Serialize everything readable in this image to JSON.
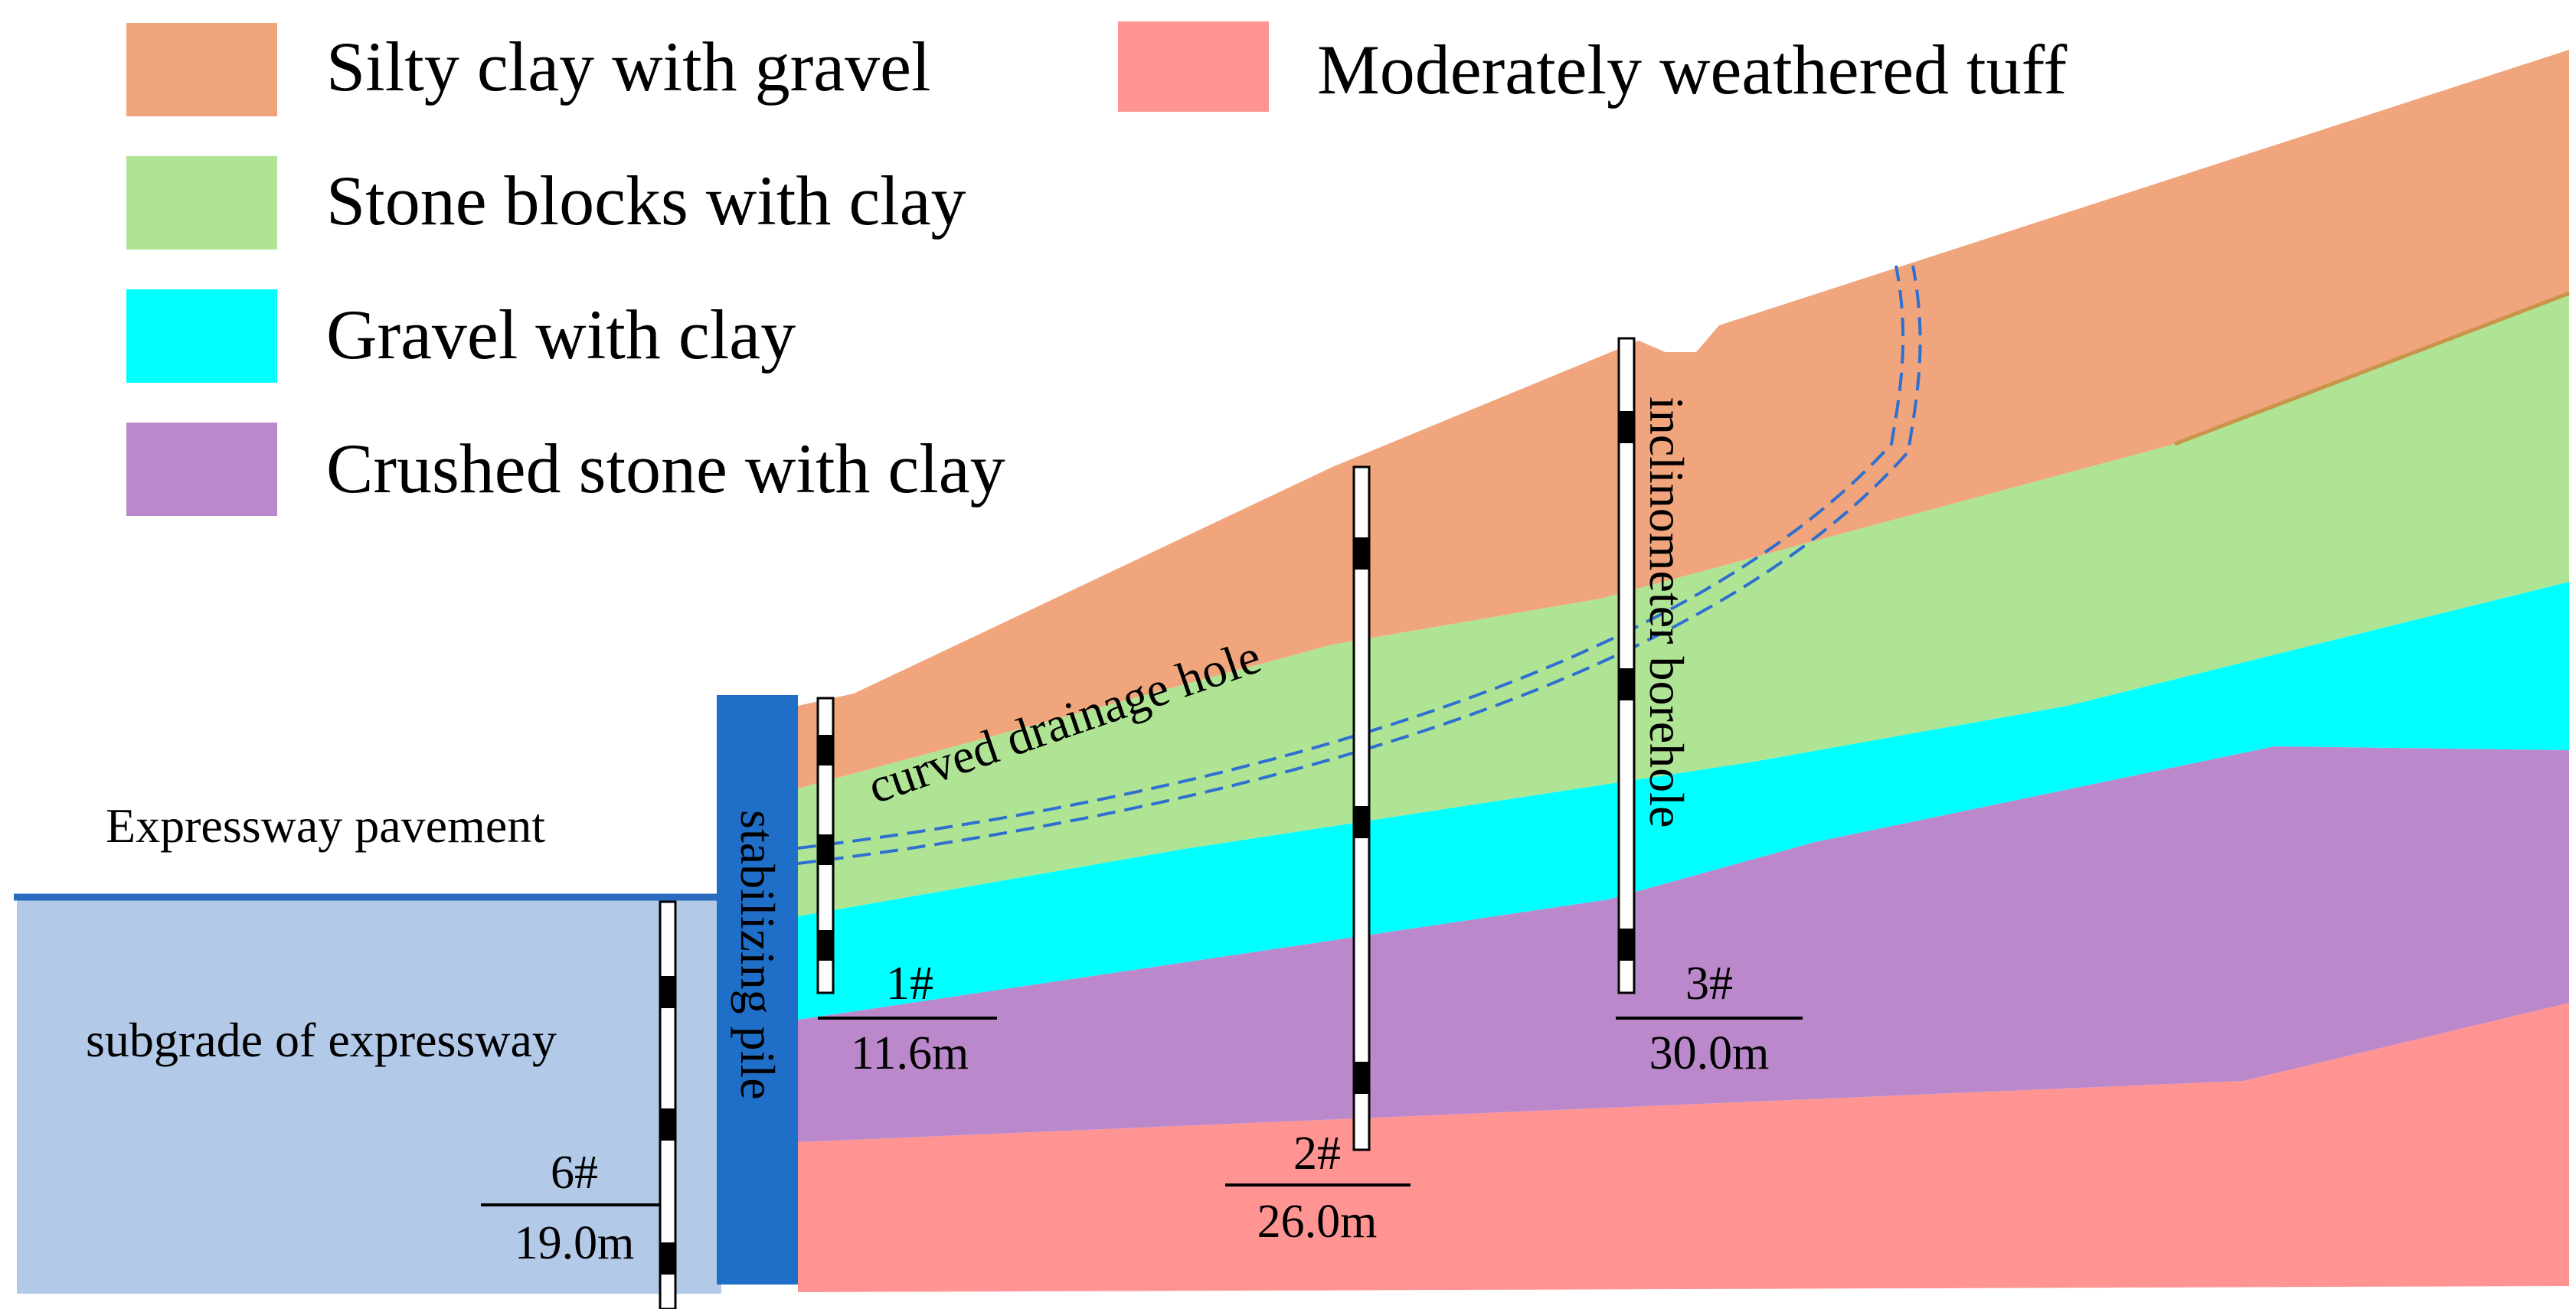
{
  "legend": {
    "items": [
      {
        "label": "Silty clay with gravel",
        "color": "#f0a57c"
      },
      {
        "label": "Stone blocks with clay",
        "color": "#b0e495"
      },
      {
        "label": "Gravel with clay",
        "color": "#00ffff"
      },
      {
        "label": "Crushed stone with clay",
        "color": "#bb89cb"
      },
      {
        "label": "Moderately weathered tuff",
        "color": "#ff9493"
      }
    ]
  },
  "labels": {
    "pavement": "Expressway pavement",
    "subgrade": "subgrade of expressway",
    "pile": "stabilizing pile",
    "drainage": "curved drainage hole",
    "inclinometer": "inclinometer borehole"
  },
  "boreholes": [
    {
      "id": "1#",
      "depth": "11.6m"
    },
    {
      "id": "2#",
      "depth": "26.0m"
    },
    {
      "id": "3#",
      "depth": "30.0m"
    },
    {
      "id": "6#",
      "depth": "19.0m"
    }
  ],
  "colors": {
    "subgrade": "#b3c9e8",
    "pavement": "#2a6bbf",
    "pile": "#1f6fc8",
    "drainage": "#2e6fd0"
  }
}
